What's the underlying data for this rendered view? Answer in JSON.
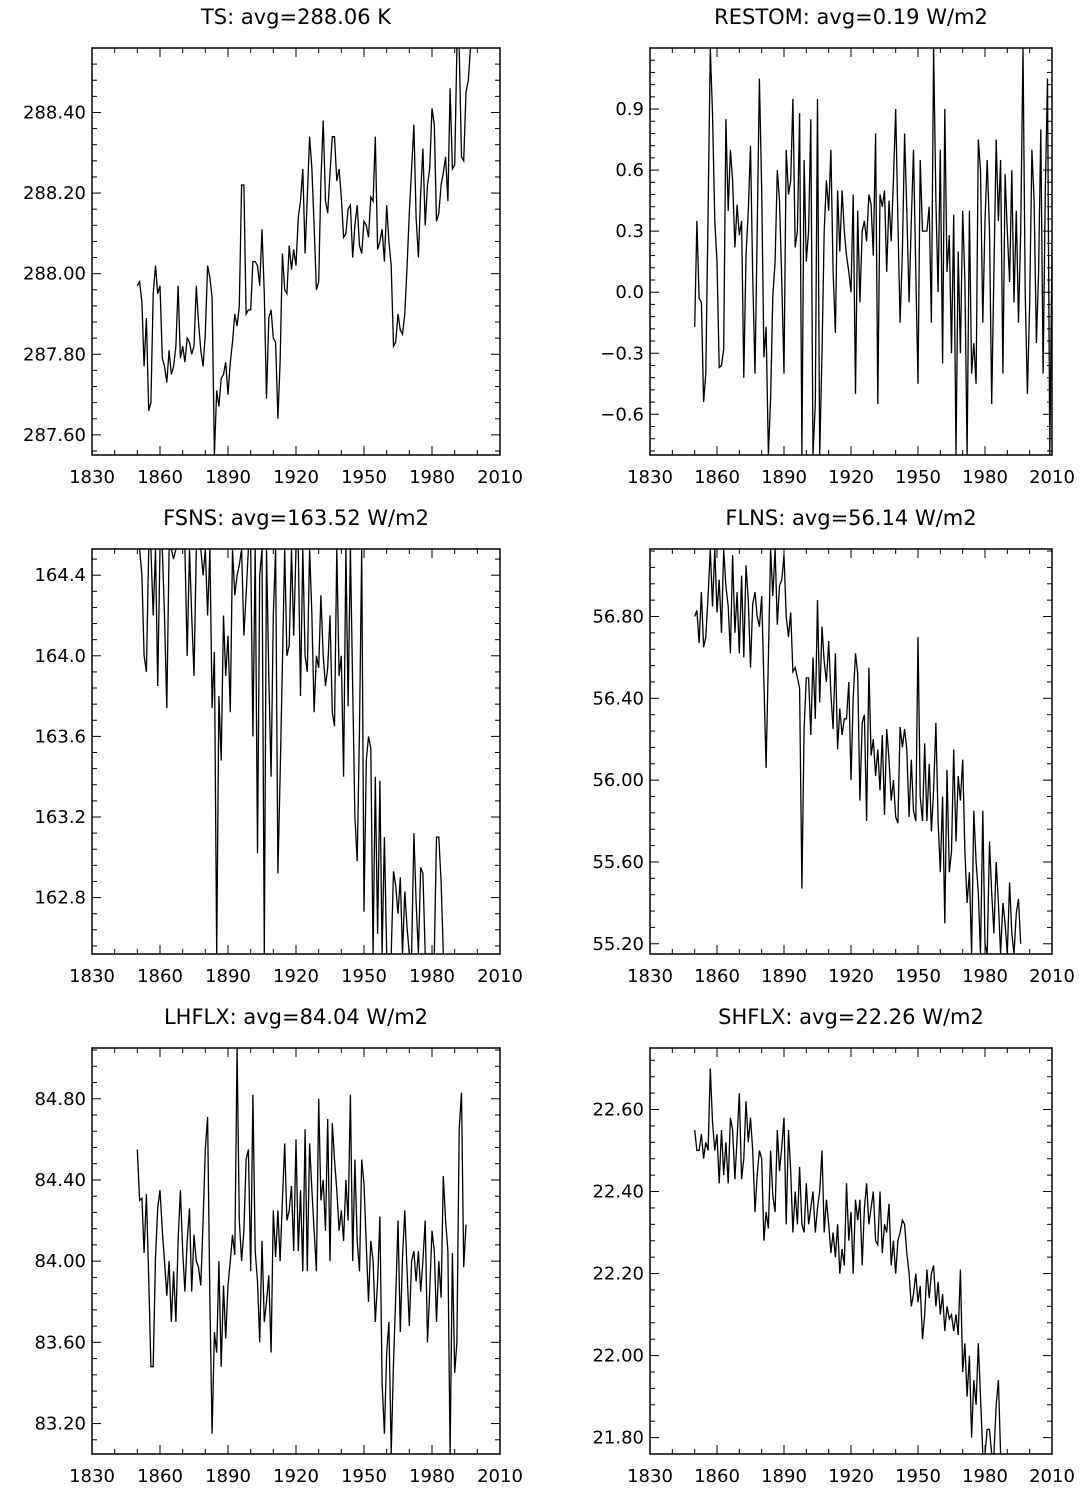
{
  "chart_data": [
    {
      "type": "line",
      "title": "TS: avg=288.06 K",
      "xlim": [
        1830,
        2010
      ],
      "ylim": [
        287.55,
        288.56
      ],
      "xticks": [
        "1830",
        "1860",
        "1890",
        "1920",
        "1950",
        "1980",
        "2010"
      ],
      "yticks": [
        "287.60",
        "287.80",
        "288.00",
        "288.20",
        "288.40"
      ],
      "x_start": 1850,
      "values": [
        287.97,
        287.98,
        287.93,
        287.77,
        287.89,
        287.66,
        287.68,
        287.95,
        288.02,
        287.95,
        287.97,
        287.79,
        287.77,
        287.73,
        287.81,
        287.75,
        287.77,
        287.82,
        287.97,
        287.79,
        287.82,
        287.78,
        287.84,
        287.83,
        287.8,
        287.82,
        287.97,
        287.88,
        287.81,
        287.77,
        287.85,
        288.02,
        287.99,
        287.94,
        287.55,
        287.71,
        287.67,
        287.74,
        287.75,
        287.78,
        287.7,
        287.78,
        287.83,
        287.9,
        287.87,
        287.92,
        288.22,
        288.22,
        287.9,
        287.91,
        287.91,
        288.03,
        288.03,
        288.02,
        287.97,
        288.11,
        287.95,
        287.69,
        287.89,
        287.91,
        287.84,
        287.83,
        287.64,
        287.78,
        288.05,
        287.96,
        287.95,
        288.07,
        288.01,
        288.06,
        288.02,
        288.14,
        288.18,
        288.26,
        288.05,
        288.19,
        288.34,
        288.26,
        288.12,
        287.96,
        287.98,
        288.23,
        288.38,
        288.18,
        288.15,
        288.25,
        288.34,
        288.34,
        288.23,
        288.26,
        288.19,
        288.09,
        288.1,
        288.16,
        288.17,
        288.04,
        288.12,
        288.17,
        288.07,
        288.05,
        288.13,
        288.12,
        288.09,
        288.19,
        288.18,
        288.34,
        288.06,
        288.08,
        288.11,
        288.03,
        288.17,
        288.08,
        288.02,
        287.82,
        287.83,
        287.9,
        287.86,
        287.85,
        287.9,
        288.02,
        288.15,
        288.26,
        288.37,
        288.14,
        288.04,
        288.2,
        288.31,
        288.12,
        288.22,
        288.26,
        288.41,
        288.37,
        288.13,
        288.15,
        288.22,
        288.25,
        288.29,
        288.18,
        288.46,
        288.26,
        288.27,
        288.56,
        288.56,
        288.29,
        288.28,
        288.45,
        288.48,
        288.56
      ]
    },
    {
      "type": "line",
      "title": "RESTOM: avg=0.19 W/m2",
      "xlim": [
        1830,
        2010
      ],
      "ylim": [
        -0.8,
        1.2
      ],
      "xticks": [
        "1830",
        "1860",
        "1890",
        "1920",
        "1950",
        "1980",
        "2010"
      ],
      "yticks": [
        "−0.6",
        "−0.3",
        "0.0",
        "0.3",
        "0.6",
        "0.9"
      ],
      "x_start": 1850,
      "values": [
        -0.17,
        0.35,
        -0.03,
        -0.05,
        -0.54,
        -0.4,
        0.4,
        1.2,
        0.88,
        0.35,
        0.15,
        -0.37,
        -0.36,
        -0.28,
        0.85,
        0.4,
        0.7,
        0.55,
        0.22,
        0.43,
        0.28,
        0.35,
        -0.42,
        0.18,
        0.4,
        0.72,
        0.08,
        -0.4,
        0.3,
        1.05,
        0.5,
        -0.32,
        -0.17,
        -0.8,
        -0.52,
        -0.02,
        0.15,
        0.6,
        0.45,
        0.05,
        -0.4,
        0.7,
        0.48,
        0.55,
        0.95,
        0.22,
        0.3,
        0.88,
        -0.8,
        0.65,
        0.15,
        0.3,
        0.85,
        -0.8,
        -0.55,
        0.95,
        -0.8,
        -0.3,
        0.3,
        0.55,
        0.4,
        0.7,
        0.1,
        -0.2,
        0.5,
        0.2,
        0.5,
        0.3,
        0.18,
        0.1,
        0.0,
        0.48,
        -0.5,
        0.4,
        -0.05,
        0.3,
        0.35,
        0.25,
        0.48,
        0.43,
        0.18,
        0.78,
        -0.55,
        0.48,
        0.42,
        0.5,
        0.1,
        0.45,
        0.25,
        0.55,
        0.9,
        0.35,
        -0.15,
        0.2,
        0.78,
        0.4,
        -0.05,
        0.35,
        0.7,
        0.1,
        -0.45,
        0.65,
        0.3,
        0.3,
        0.3,
        0.42,
        -0.15,
        1.2,
        0.45,
        0.0,
        0.7,
        -0.35,
        0.9,
        0.1,
        0.28,
        -0.3,
        0.38,
        -0.8,
        0.2,
        -0.3,
        0.4,
        0.05,
        -0.8,
        0.4,
        -0.4,
        -0.25,
        -0.45,
        0.75,
        0.6,
        -0.15,
        0.35,
        0.65,
        0.3,
        -0.55,
        0.1,
        0.75,
        0.35,
        0.65,
        -0.4,
        0.58,
        0.3,
        0.05,
        0.6,
        -0.05,
        0.4,
        -0.15,
        0.3,
        1.2,
        0.0,
        -0.5,
        -0.05,
        0.7,
        0.45,
        -0.25,
        0.1,
        0.8,
        -0.4,
        0.5,
        1.05,
        -0.8,
        0.2,
        0.9,
        0.85,
        0.45,
        0.2,
        0.7,
        1.2,
        0.6,
        0.9,
        1.2,
        0.8,
        -0.55,
        1.15,
        0.86
      ]
    },
    {
      "type": "line",
      "title": "FSNS: avg=163.52 W/m2",
      "xlim": [
        1830,
        2010
      ],
      "ylim": [
        162.52,
        164.53
      ],
      "xticks": [
        "1830",
        "1860",
        "1890",
        "1920",
        "1950",
        "1980",
        "2010"
      ],
      "yticks": [
        "162.8",
        "163.2",
        "163.6",
        "164.0",
        "164.4"
      ],
      "x_start": 1850,
      "values": [
        164.53,
        164.53,
        164.4,
        164.0,
        163.92,
        164.53,
        164.53,
        164.2,
        164.53,
        163.85,
        164.53,
        164.53,
        164.2,
        163.74,
        164.53,
        164.53,
        164.48,
        164.53,
        164.53,
        164.53,
        164.53,
        164.53,
        164.0,
        164.53,
        164.2,
        163.9,
        164.53,
        164.53,
        164.53,
        164.4,
        164.53,
        164.2,
        164.53,
        163.74,
        164.02,
        162.52,
        163.8,
        163.48,
        164.2,
        163.9,
        164.1,
        163.72,
        164.53,
        164.3,
        164.4,
        164.45,
        164.53,
        164.1,
        164.3,
        164.53,
        164.53,
        163.6,
        164.53,
        163.02,
        164.4,
        164.53,
        162.52,
        164.53,
        163.9,
        163.4,
        164.2,
        164.53,
        162.92,
        163.4,
        163.95,
        164.53,
        164.0,
        164.05,
        164.53,
        164.1,
        164.53,
        164.53,
        163.8,
        164.53,
        164.0,
        163.92,
        164.53,
        164.2,
        163.72,
        164.0,
        163.94,
        164.3,
        164.0,
        163.85,
        163.94,
        164.2,
        163.72,
        163.65,
        164.53,
        163.9,
        164.0,
        163.4,
        164.53,
        163.75,
        164.53,
        163.84,
        163.2,
        162.98,
        163.64,
        164.53,
        162.73,
        163.48,
        163.6,
        163.54,
        162.52,
        163.4,
        162.62,
        163.38,
        162.52,
        163.1,
        162.52,
        162.52,
        162.52,
        162.93,
        162.86,
        162.72,
        162.9,
        162.52,
        162.83,
        162.65,
        162.52,
        162.52,
        163.12,
        162.78,
        162.52,
        162.95,
        162.92,
        162.52,
        162.52,
        162.52,
        162.52,
        162.52,
        163.1,
        163.1,
        162.88,
        162.52
      ]
    },
    {
      "type": "line",
      "title": "FLNS: avg=56.14 W/m2",
      "xlim": [
        1830,
        2010
      ],
      "ylim": [
        55.15,
        57.13
      ],
      "xticks": [
        "1830",
        "1860",
        "1890",
        "1920",
        "1950",
        "1980",
        "2010"
      ],
      "yticks": [
        "55.20",
        "55.60",
        "56.00",
        "56.40",
        "56.80"
      ],
      "x_start": 1850,
      "values": [
        56.8,
        56.83,
        56.67,
        56.92,
        56.65,
        56.7,
        56.9,
        57.13,
        56.85,
        57.13,
        56.82,
        56.98,
        56.72,
        57.13,
        56.95,
        56.85,
        56.62,
        57.1,
        56.72,
        56.92,
        56.62,
        57.0,
        56.6,
        57.05,
        56.88,
        56.55,
        56.86,
        56.92,
        56.8,
        56.75,
        56.9,
        56.48,
        56.06,
        56.6,
        57.13,
        56.9,
        57.13,
        56.76,
        56.95,
        56.98,
        57.1,
        56.8,
        56.7,
        56.82,
        56.53,
        56.55,
        56.5,
        56.45,
        55.47,
        56.25,
        56.5,
        56.5,
        56.22,
        56.6,
        56.3,
        56.88,
        56.38,
        56.75,
        56.58,
        56.48,
        56.68,
        56.42,
        56.25,
        56.62,
        56.15,
        56.35,
        56.22,
        56.3,
        56.3,
        56.48,
        56.0,
        56.4,
        56.62,
        56.52,
        55.9,
        56.28,
        56.32,
        55.8,
        56.55,
        56.12,
        56.2,
        56.02,
        56.15,
        55.95,
        56.22,
        55.83,
        56.25,
        56.1,
        55.9,
        56.0,
        55.82,
        55.79,
        56.26,
        56.16,
        56.25,
        56.15,
        55.82,
        56.1,
        55.85,
        55.8,
        56.7,
        55.92,
        55.8,
        56.18,
        55.8,
        56.08,
        55.75,
        55.95,
        56.28,
        55.8,
        55.55,
        55.92,
        55.3,
        56.05,
        55.55,
        55.65,
        56.15,
        55.7,
        56.02,
        55.9,
        56.1,
        55.65,
        55.4,
        55.55,
        55.15,
        55.85,
        55.6,
        55.45,
        55.15,
        55.85,
        55.2,
        55.15,
        55.7,
        55.45,
        55.25,
        55.6,
        55.4,
        55.15,
        55.4,
        55.3,
        55.15,
        55.5,
        55.25,
        55.15,
        55.35,
        55.42,
        55.2
      ]
    },
    {
      "type": "line",
      "title": "LHFLX: avg=84.04 W/m2",
      "xlim": [
        1830,
        2010
      ],
      "ylim": [
        83.05,
        85.05
      ],
      "xticks": [
        "1830",
        "1860",
        "1890",
        "1920",
        "1950",
        "1980",
        "2010"
      ],
      "yticks": [
        "83.20",
        "83.60",
        "84.00",
        "84.40",
        "84.80"
      ],
      "x_start": 1850,
      "values": [
        84.55,
        84.3,
        84.31,
        84.04,
        84.33,
        83.92,
        83.48,
        83.48,
        84.02,
        84.26,
        84.35,
        84.15,
        84.0,
        83.83,
        84.0,
        83.7,
        83.95,
        83.7,
        84.1,
        84.35,
        84.05,
        83.85,
        84.1,
        84.26,
        83.85,
        84.13,
        84.0,
        83.97,
        83.88,
        84.2,
        84.55,
        84.71,
        83.8,
        83.15,
        83.65,
        83.55,
        84.0,
        83.48,
        83.88,
        83.62,
        83.88,
        84.0,
        84.13,
        84.03,
        85.05,
        84.2,
        84.0,
        84.15,
        84.5,
        84.55,
        83.95,
        84.82,
        84.05,
        83.9,
        83.6,
        84.1,
        83.7,
        83.8,
        83.93,
        83.55,
        84.25,
        84.02,
        84.25,
        84.0,
        84.3,
        84.58,
        84.2,
        84.25,
        84.37,
        84.05,
        84.6,
        84.05,
        84.35,
        83.95,
        84.65,
        83.95,
        84.58,
        84.35,
        84.15,
        83.95,
        84.8,
        84.3,
        84.4,
        84.15,
        84.7,
        84.0,
        84.68,
        84.5,
        84.35,
        84.15,
        84.25,
        84.1,
        84.4,
        84.2,
        84.82,
        84.0,
        84.5,
        84.1,
        83.95,
        84.5,
        84.38,
        84.08,
        83.8,
        84.1,
        84.0,
        83.7,
        83.9,
        84.22,
        83.4,
        83.15,
        83.55,
        83.7,
        83.05,
        83.5,
        83.82,
        84.2,
        83.65,
        84.02,
        84.25,
        83.95,
        83.68,
        84.0,
        84.05,
        83.9,
        84.05,
        83.85,
        84.0,
        84.2,
        83.6,
        83.85,
        84.15,
        84.05,
        83.7,
        84.0,
        83.82,
        84.42,
        84.2,
        84.05,
        83.05,
        84.04,
        83.45,
        83.6,
        84.65,
        84.83,
        83.97,
        84.18
      ]
    },
    {
      "type": "line",
      "title": "SHFLX: avg=22.26 W/m2",
      "xlim": [
        1830,
        2010
      ],
      "ylim": [
        21.76,
        22.75
      ],
      "xticks": [
        "1830",
        "1860",
        "1890",
        "1920",
        "1950",
        "1980",
        "2010"
      ],
      "yticks": [
        "21.80",
        "22.00",
        "22.20",
        "22.40",
        "22.60"
      ],
      "x_start": 1850,
      "values": [
        22.55,
        22.5,
        22.5,
        22.54,
        22.48,
        22.52,
        22.5,
        22.7,
        22.57,
        22.5,
        22.54,
        22.42,
        22.55,
        22.44,
        22.52,
        22.42,
        22.58,
        22.55,
        22.43,
        22.53,
        22.64,
        22.43,
        22.48,
        22.62,
        22.52,
        22.58,
        22.5,
        22.35,
        22.44,
        22.5,
        22.48,
        22.28,
        22.35,
        22.31,
        22.5,
        22.39,
        22.35,
        22.55,
        22.45,
        22.51,
        22.58,
        22.32,
        22.55,
        22.45,
        22.3,
        22.4,
        22.32,
        22.46,
        22.32,
        22.3,
        22.42,
        22.32,
        22.36,
        22.4,
        22.3,
        22.36,
        22.4,
        22.5,
        22.3,
        22.38,
        22.32,
        22.25,
        22.3,
        22.24,
        22.32,
        22.2,
        22.26,
        22.22,
        22.42,
        22.28,
        22.35,
        22.2,
        22.38,
        22.33,
        22.38,
        22.22,
        22.36,
        22.42,
        22.32,
        22.36,
        22.4,
        22.28,
        22.27,
        22.4,
        22.25,
        22.32,
        22.3,
        22.37,
        22.22,
        22.28,
        22.2,
        22.28,
        22.3,
        22.33,
        22.32,
        22.25,
        22.2,
        22.12,
        22.15,
        22.2,
        22.13,
        22.17,
        22.04,
        22.1,
        22.21,
        22.14,
        22.2,
        22.22,
        22.12,
        22.18,
        22.1,
        22.15,
        22.06,
        22.12,
        22.09,
        22.1,
        22.06,
        22.1,
        22.05,
        22.21,
        21.96,
        22.03,
        21.9,
        22.0,
        21.8,
        21.94,
        21.88,
        22.03,
        21.9,
        21.76,
        21.76,
        21.82,
        21.82,
        21.76,
        21.76,
        21.88,
        21.94,
        21.76
      ]
    }
  ]
}
